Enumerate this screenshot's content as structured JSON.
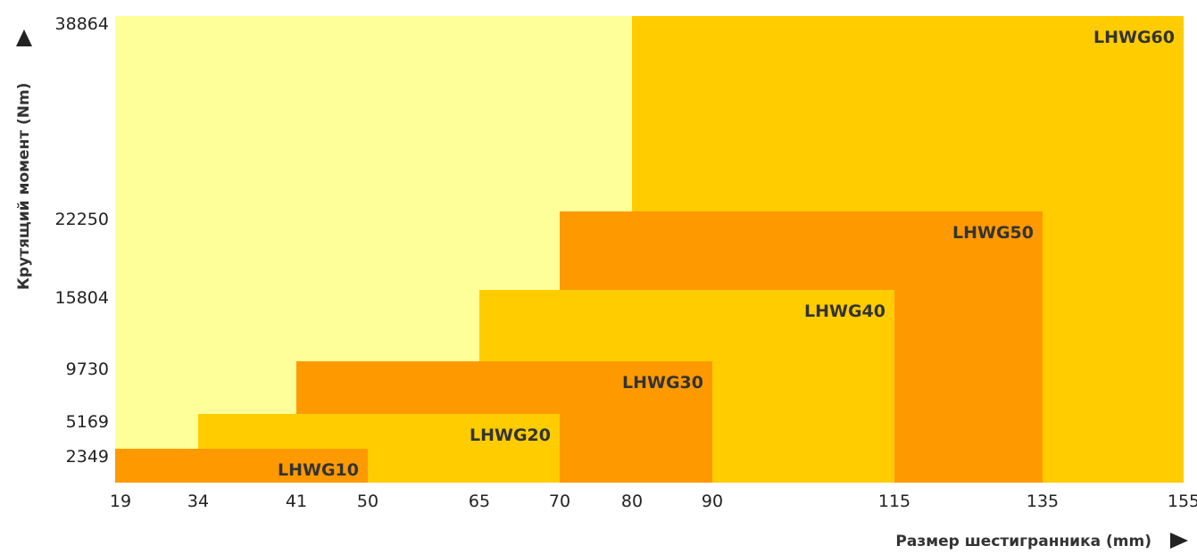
{
  "chart_data": {
    "type": "bar",
    "title": "",
    "xlabel": "Размер шестигранника (mm)",
    "ylabel": "Крутящий момент (Nm)",
    "x_ticks": [
      "19",
      "34",
      "41",
      "50",
      "65",
      "70",
      "80",
      "90",
      "115",
      "135",
      "155"
    ],
    "y_ticks": [
      "2349",
      "5169",
      "9730",
      "15804",
      "22250",
      "38864"
    ],
    "series": [
      {
        "name": "LHWG60",
        "x_min": "80",
        "x_max": "155",
        "y_max": "38864",
        "color": "#FFCC00"
      },
      {
        "name": "LHWG50",
        "x_min": "70",
        "x_max": "135",
        "y_max": "22250",
        "color": "#FF9900"
      },
      {
        "name": "LHWG40",
        "x_min": "65",
        "x_max": "115",
        "y_max": "15804",
        "color": "#FFCC00"
      },
      {
        "name": "LHWG30",
        "x_min": "41",
        "x_max": "90",
        "y_max": "9730",
        "color": "#FF9900"
      },
      {
        "name": "LHWG20",
        "x_min": "34",
        "x_max": "70",
        "y_max": "5169",
        "color": "#FFCC00"
      },
      {
        "name": "LHWG10",
        "x_min": "19",
        "x_max": "50",
        "y_max": "2349",
        "color": "#FF9900"
      }
    ],
    "background_color": "#FFFF99",
    "grid": false,
    "legend": "none"
  }
}
